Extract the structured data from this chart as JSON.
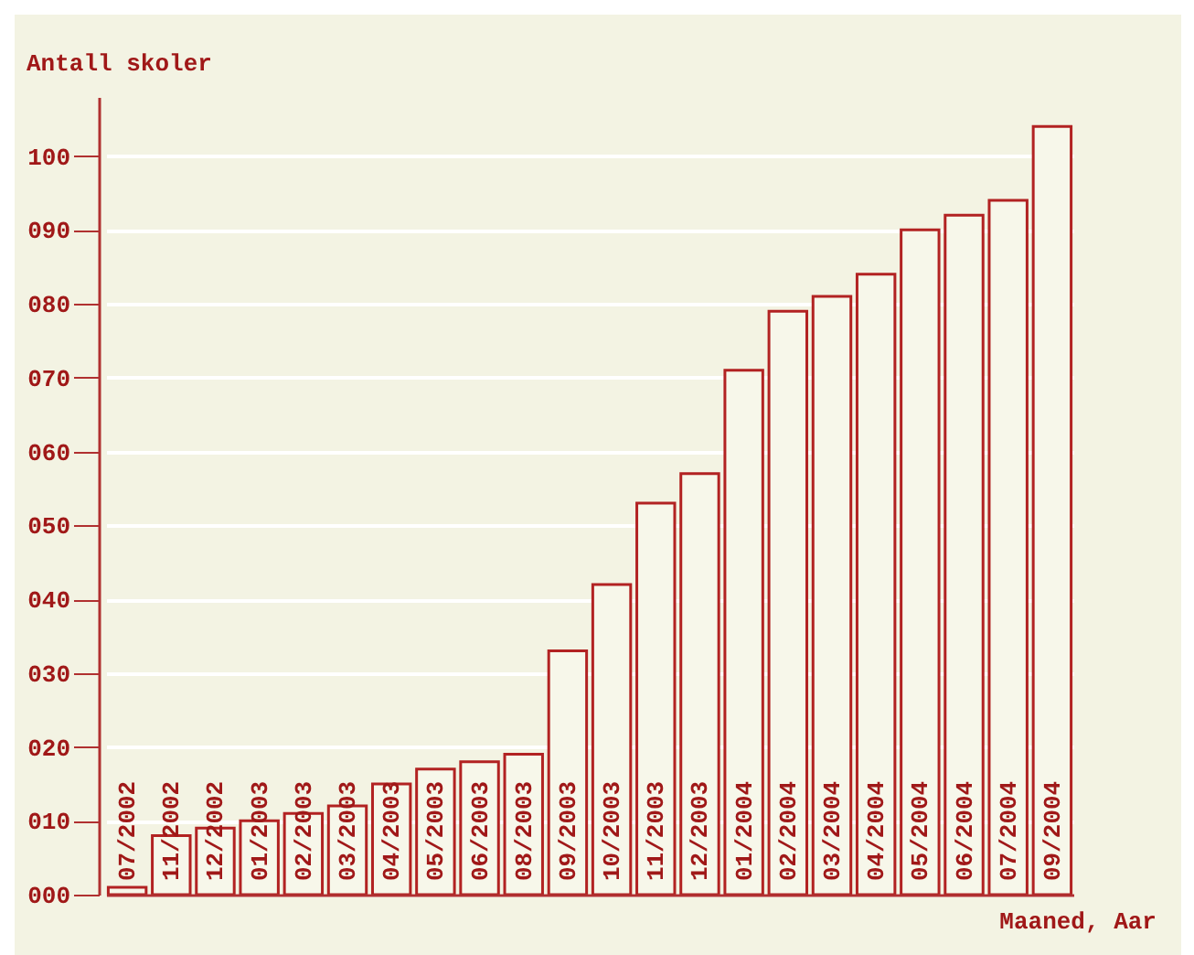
{
  "chart_data": {
    "type": "bar",
    "xlabel": "Maaned, Aar",
    "ylabel": "Antall skoler",
    "categories": [
      "07/2002",
      "11/2002",
      "12/2002",
      "01/2003",
      "02/2003",
      "03/2003",
      "04/2003",
      "05/2003",
      "06/2003",
      "08/2003",
      "09/2003",
      "10/2003",
      "11/2003",
      "12/2003",
      "01/2004",
      "02/2004",
      "03/2004",
      "04/2004",
      "05/2004",
      "06/2004",
      "07/2004",
      "09/2004"
    ],
    "values": [
      1,
      8,
      9,
      10,
      11,
      12,
      15,
      17,
      18,
      19,
      33,
      42,
      53,
      57,
      71,
      79,
      81,
      84,
      90,
      92,
      94,
      104
    ],
    "color": "#b22222",
    "ylim": [
      0,
      108
    ],
    "yticks": [
      {
        "value": 0,
        "label": "000"
      },
      {
        "value": 10,
        "label": "010"
      },
      {
        "value": 20,
        "label": "020"
      },
      {
        "value": 30,
        "label": "030"
      },
      {
        "value": 40,
        "label": "040"
      },
      {
        "value": 50,
        "label": "050"
      },
      {
        "value": 60,
        "label": "060"
      },
      {
        "value": 70,
        "label": "070"
      },
      {
        "value": 80,
        "label": "080"
      },
      {
        "value": 90,
        "label": "090"
      },
      {
        "value": 100,
        "label": "100"
      }
    ],
    "grid": "y"
  }
}
